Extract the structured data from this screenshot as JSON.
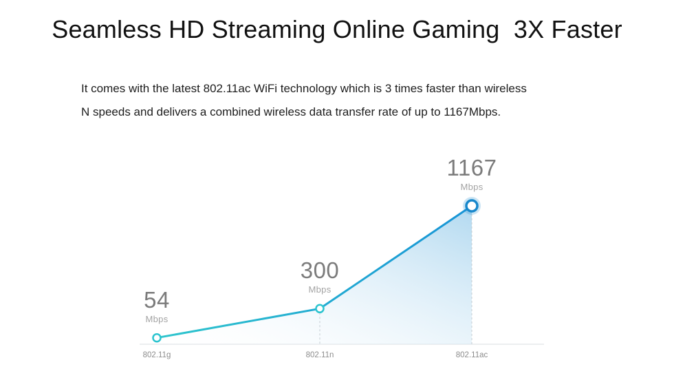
{
  "title": "Seamless HD Streaming Online Gaming  3X Faster",
  "description": {
    "line1": "It comes with the latest 802.11ac WiFi technology which is 3 times faster than wireless",
    "line2": "N speeds and delivers a combined wireless data transfer rate of up to 1167Mbps."
  },
  "chart_data": {
    "type": "area",
    "title": "",
    "categories": [
      "802.11g",
      "802.11n",
      "802.11ac"
    ],
    "values": [
      54,
      300,
      1167
    ],
    "unit": "Mbps",
    "ylim": [
      0,
      1167
    ],
    "grid": false,
    "legend": false,
    "annotations": [
      "54 Mbps",
      "300 Mbps",
      "1167 Mbps"
    ],
    "colors": {
      "line_start": "#2fc6cd",
      "line_end": "#1793d6",
      "marker_stroke": "#2cc4cf",
      "peak_marker_stroke": "#1787cb",
      "area_top": "#a8d4ee",
      "baseline": "#d8dde1",
      "dash": "#c4ccd2",
      "label_number": "#7b7b7b",
      "label_unit": "#a3a3a3",
      "axis_label": "#8c8c8c"
    }
  }
}
